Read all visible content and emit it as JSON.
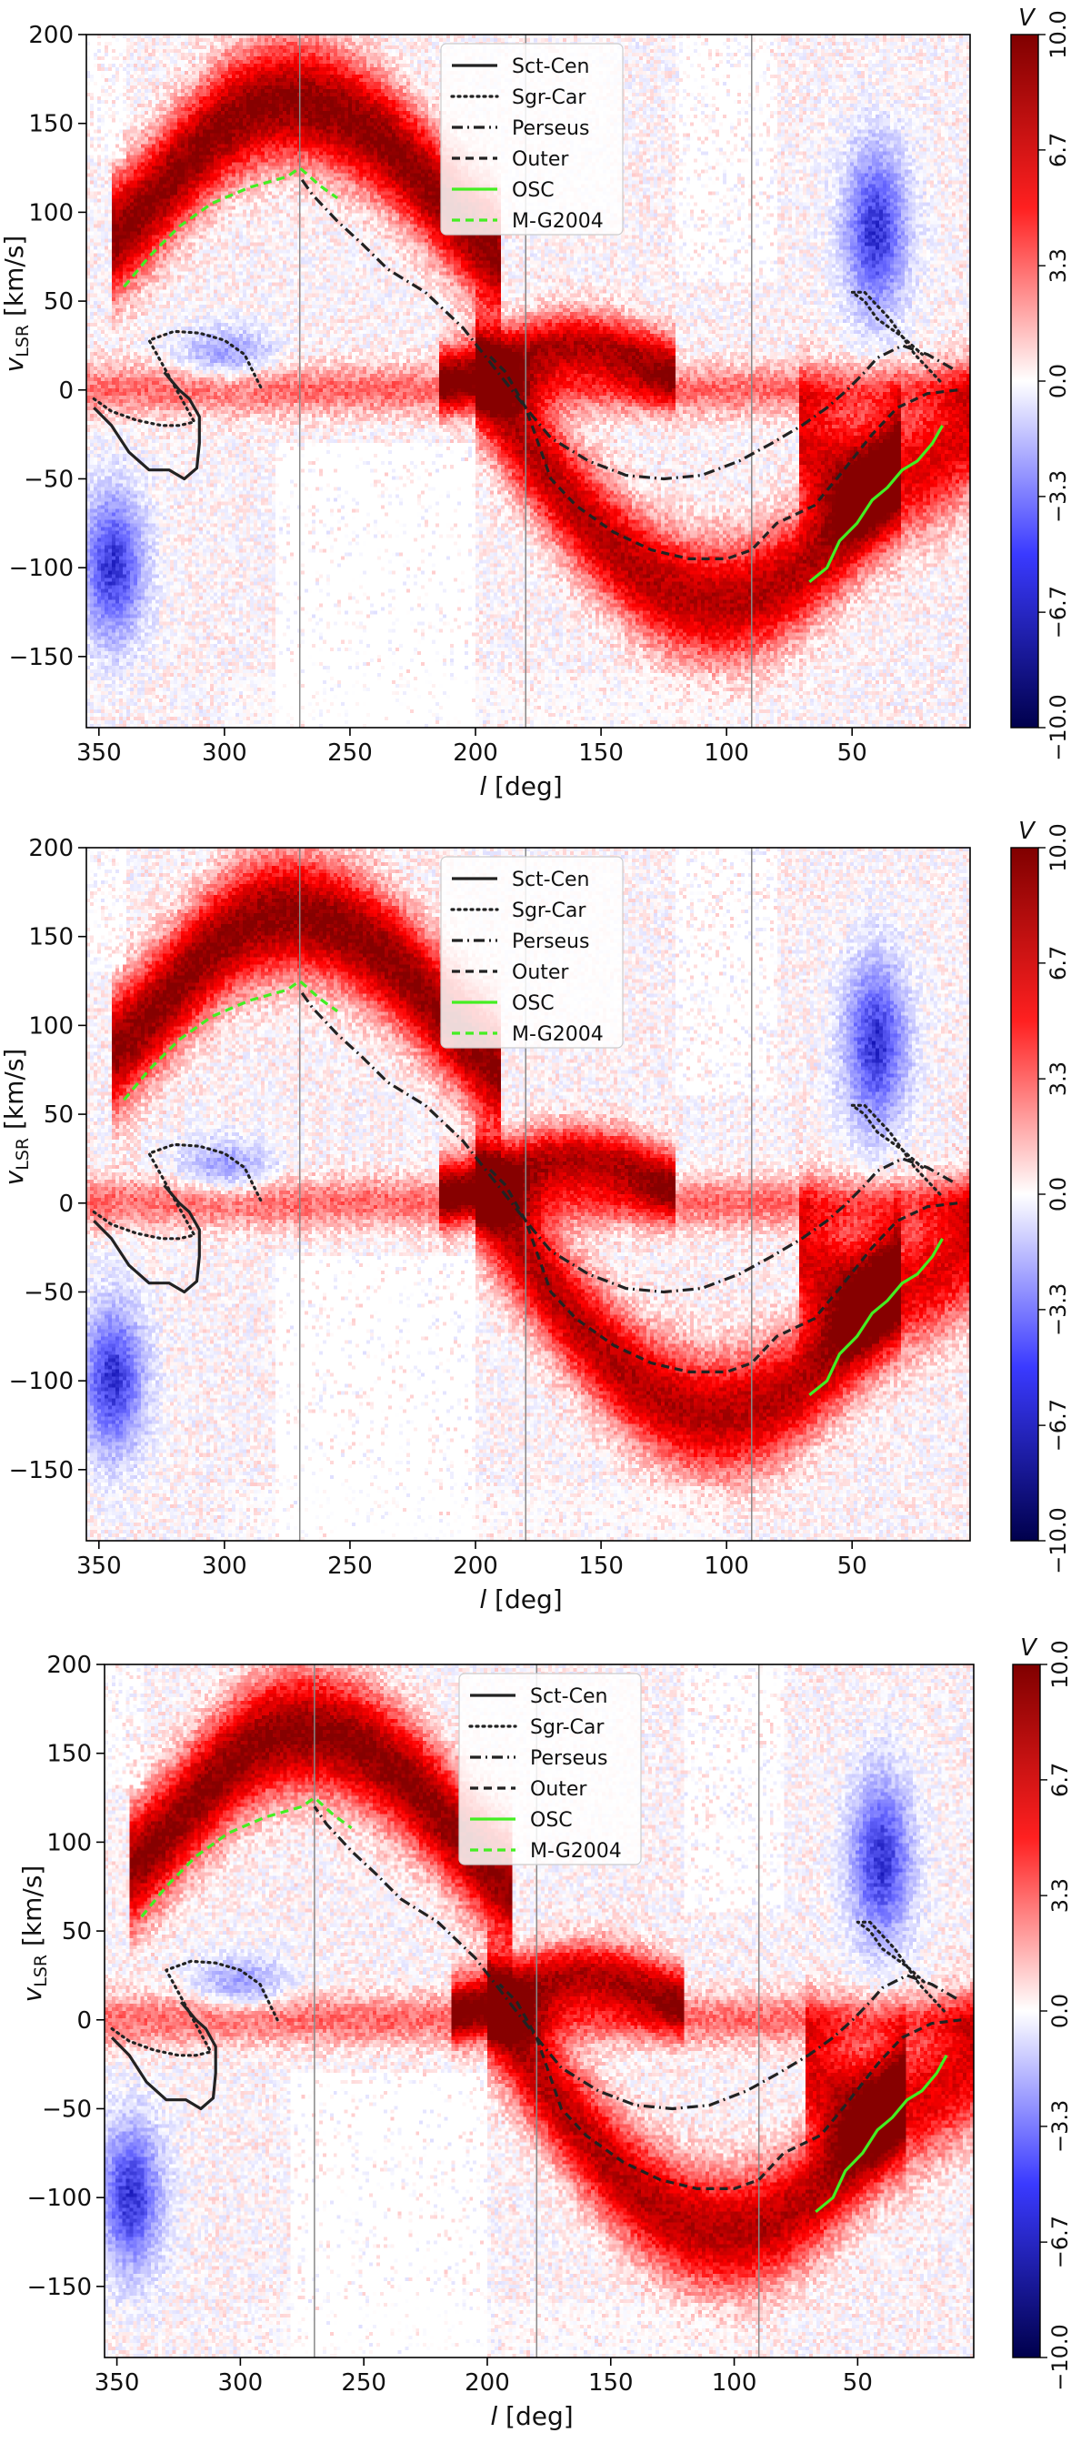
{
  "chart_data": [
    {
      "type": "heatmap",
      "panel": "top",
      "xlabel_symbol": "l",
      "xlabel_unit": "[deg]",
      "ylabel_main": "v",
      "ylabel_sub": "LSR",
      "ylabel_unit": "[km/s]",
      "xlim": [
        355,
        3
      ],
      "ylim": [
        -190,
        200
      ],
      "x_ticks": [
        350,
        300,
        250,
        200,
        150,
        100,
        50
      ],
      "y_ticks": [
        200,
        150,
        100,
        50,
        0,
        -50,
        -100,
        -150
      ],
      "vertical_lines": [
        270,
        180,
        90
      ],
      "colorbar": {
        "label": "V",
        "min": -10,
        "max": 10,
        "ticks": [
          "10.0",
          "6.7",
          "3.3",
          "0.0",
          "−3.3",
          "−6.7",
          "−10.0"
        ]
      },
      "legend": [
        "Sct-Cen",
        "Sgr-Car",
        "Perseus",
        "Outer",
        "OSC",
        "M-G2004"
      ]
    },
    {
      "type": "heatmap",
      "panel": "middle",
      "xlabel_symbol": "l",
      "xlabel_unit": "[deg]",
      "ylabel_main": "v",
      "ylabel_sub": "LSR",
      "ylabel_unit": "[km/s]",
      "xlim": [
        355,
        3
      ],
      "ylim": [
        -190,
        200
      ],
      "x_ticks": [
        350,
        300,
        250,
        200,
        150,
        100,
        50
      ],
      "y_ticks": [
        200,
        150,
        100,
        50,
        0,
        -50,
        -100,
        -150
      ],
      "vertical_lines": [
        270,
        180,
        90
      ],
      "colorbar": {
        "label": "V",
        "min": -10,
        "max": 10,
        "ticks": [
          "10.0",
          "6.7",
          "3.3",
          "0.0",
          "−3.3",
          "−6.7",
          "−10.0"
        ]
      },
      "legend": [
        "Sct-Cen",
        "Sgr-Car",
        "Perseus",
        "Outer",
        "OSC",
        "M-G2004"
      ]
    },
    {
      "type": "heatmap",
      "panel": "bottom",
      "xlabel_symbol": "l",
      "xlabel_unit": "[deg]",
      "ylabel_main": "v",
      "ylabel_sub": "LSR",
      "ylabel_unit": "[km/s]",
      "xlim": [
        355,
        3
      ],
      "ylim": [
        -190,
        200
      ],
      "x_ticks": [
        350,
        300,
        250,
        200,
        150,
        100,
        50
      ],
      "y_ticks": [
        200,
        150,
        100,
        50,
        0,
        -50,
        -100,
        -150
      ],
      "vertical_lines": [
        270,
        180,
        90
      ],
      "colorbar": {
        "label": "V",
        "min": -10,
        "max": 10,
        "ticks": [
          "10.0",
          "6.7",
          "3.3",
          "0.0",
          "−3.3",
          "−6.7",
          "−10.0"
        ]
      },
      "legend": [
        "Sct-Cen",
        "Sgr-Car",
        "Perseus",
        "Outer",
        "OSC",
        "M-G2004"
      ]
    }
  ],
  "arms": {
    "sct_cen": [
      [
        352,
        -10
      ],
      [
        345,
        -20
      ],
      [
        338,
        -35
      ],
      [
        330,
        -45
      ],
      [
        322,
        -45
      ],
      [
        316,
        -50
      ],
      [
        311,
        -44
      ],
      [
        310,
        -30
      ],
      [
        310,
        -15
      ],
      [
        314,
        -5
      ],
      [
        318,
        0
      ],
      [
        324,
        10
      ]
    ],
    "sgr_car": [
      [
        352,
        -5
      ],
      [
        345,
        -12
      ],
      [
        335,
        -17
      ],
      [
        325,
        -20
      ],
      [
        318,
        -20
      ],
      [
        312,
        -18
      ],
      [
        330,
        28
      ],
      [
        320,
        33
      ],
      [
        310,
        32
      ],
      [
        300,
        28
      ],
      [
        292,
        20
      ],
      [
        285,
        0
      ]
    ],
    "perseus": [
      [
        10,
        12
      ],
      [
        20,
        20
      ],
      [
        30,
        25
      ],
      [
        40,
        18
      ],
      [
        45,
        10
      ],
      [
        52,
        0
      ],
      [
        60,
        -10
      ],
      [
        70,
        -20
      ],
      [
        82,
        -30
      ],
      [
        95,
        -40
      ],
      [
        110,
        -48
      ],
      [
        125,
        -50
      ],
      [
        140,
        -48
      ],
      [
        155,
        -40
      ],
      [
        170,
        -27
      ],
      [
        180,
        -10
      ],
      [
        190,
        8
      ],
      [
        205,
        35
      ],
      [
        220,
        55
      ],
      [
        235,
        68
      ],
      [
        245,
        82
      ],
      [
        255,
        95
      ],
      [
        265,
        110
      ],
      [
        270,
        120
      ]
    ],
    "perseus_upper": [
      [
        15,
        5
      ],
      [
        25,
        20
      ],
      [
        35,
        40
      ],
      [
        45,
        55
      ],
      [
        50,
        55
      ],
      [
        45,
        50
      ],
      [
        40,
        40
      ],
      [
        30,
        30
      ],
      [
        22,
        20
      ]
    ],
    "outer": [
      [
        8,
        0
      ],
      [
        20,
        -2
      ],
      [
        32,
        -10
      ],
      [
        42,
        -25
      ],
      [
        55,
        -48
      ],
      [
        65,
        -65
      ],
      [
        80,
        -75
      ],
      [
        90,
        -90
      ],
      [
        100,
        -95
      ],
      [
        115,
        -95
      ],
      [
        130,
        -90
      ],
      [
        145,
        -80
      ],
      [
        160,
        -65
      ],
      [
        170,
        -50
      ],
      [
        180,
        -10
      ],
      [
        188,
        10
      ],
      [
        195,
        20
      ]
    ],
    "osc": [
      [
        67,
        -108
      ],
      [
        60,
        -100
      ],
      [
        55,
        -85
      ],
      [
        48,
        -75
      ],
      [
        42,
        -62
      ],
      [
        36,
        -55
      ],
      [
        30,
        -45
      ],
      [
        24,
        -40
      ],
      [
        18,
        -30
      ],
      [
        14,
        -20
      ]
    ],
    "mg2004": [
      [
        340,
        58
      ],
      [
        330,
        75
      ],
      [
        318,
        92
      ],
      [
        305,
        105
      ],
      [
        290,
        114
      ],
      [
        275,
        120
      ],
      [
        270,
        125
      ],
      [
        262,
        115
      ],
      [
        255,
        108
      ]
    ]
  }
}
